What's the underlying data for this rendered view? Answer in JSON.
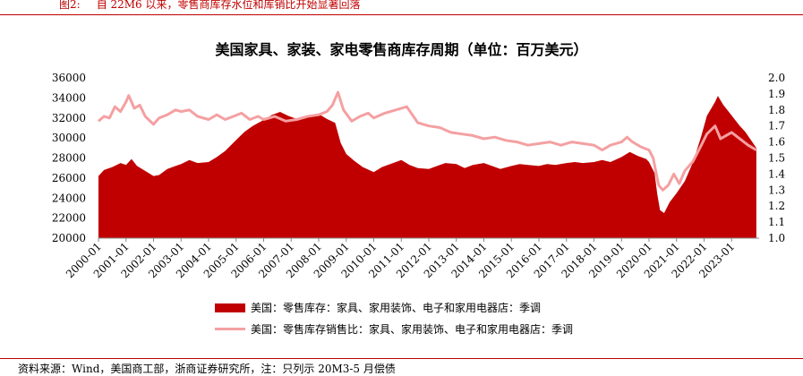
{
  "caption": {
    "label": "图2:",
    "text": "自 22M6 以来，零售商库存水位和库销比开始显著回落"
  },
  "source": "资料来源：Wind，美国商工部，浙商证券研究所，注：只列示 20M3-5 月偿债",
  "colors": {
    "inventory": "#c00000",
    "ratio": "#f4a0a2",
    "rule": "#c00000"
  },
  "chart_data": {
    "type": "area+line",
    "title": "美国家具、家装、家电零售商库存周期（单位：百万美元）",
    "x_labels": [
      "2000-01",
      "2001-01",
      "2002-01",
      "2003-01",
      "2004-01",
      "2005-01",
      "2006-01",
      "2007-01",
      "2008-01",
      "2009-01",
      "2010-01",
      "2011-01",
      "2012-01",
      "2013-01",
      "2014-01",
      "2015-01",
      "2016-01",
      "2017-01",
      "2018-01",
      "2019-01",
      "2020-01",
      "2021-01",
      "2022-01",
      "2023-01"
    ],
    "y_left": {
      "min": 20000,
      "max": 36000,
      "step": 2000
    },
    "y_right": {
      "min": 1.0,
      "max": 2.0,
      "step": 0.1
    },
    "legend_position": "bottom",
    "series": [
      {
        "name": "美国：零售库存：家具、家用装饰、电子和家用电器店：季调",
        "kind": "area",
        "axis": "left",
        "points": [
          [
            2000.0,
            26200
          ],
          [
            2000.2,
            26800
          ],
          [
            2000.5,
            27100
          ],
          [
            2000.8,
            27500
          ],
          [
            2001.0,
            27300
          ],
          [
            2001.2,
            27900
          ],
          [
            2001.4,
            27200
          ],
          [
            2001.7,
            26700
          ],
          [
            2002.0,
            26200
          ],
          [
            2002.2,
            26300
          ],
          [
            2002.5,
            26900
          ],
          [
            2002.8,
            27200
          ],
          [
            2003.0,
            27400
          ],
          [
            2003.3,
            27800
          ],
          [
            2003.6,
            27500
          ],
          [
            2004.0,
            27600
          ],
          [
            2004.3,
            28100
          ],
          [
            2004.6,
            28700
          ],
          [
            2005.0,
            29800
          ],
          [
            2005.3,
            30600
          ],
          [
            2005.6,
            31200
          ],
          [
            2006.0,
            31800
          ],
          [
            2006.3,
            32300
          ],
          [
            2006.6,
            32600
          ],
          [
            2006.9,
            32200
          ],
          [
            2007.2,
            31900
          ],
          [
            2007.5,
            32100
          ],
          [
            2007.8,
            32300
          ],
          [
            2008.0,
            32400
          ],
          [
            2008.3,
            31900
          ],
          [
            2008.6,
            31500
          ],
          [
            2008.8,
            29500
          ],
          [
            2009.0,
            28400
          ],
          [
            2009.3,
            27700
          ],
          [
            2009.6,
            27100
          ],
          [
            2010.0,
            26600
          ],
          [
            2010.3,
            27100
          ],
          [
            2010.6,
            27400
          ],
          [
            2011.0,
            27800
          ],
          [
            2011.3,
            27300
          ],
          [
            2011.6,
            27000
          ],
          [
            2012.0,
            26900
          ],
          [
            2012.3,
            27200
          ],
          [
            2012.6,
            27500
          ],
          [
            2013.0,
            27400
          ],
          [
            2013.3,
            27000
          ],
          [
            2013.6,
            27300
          ],
          [
            2014.0,
            27500
          ],
          [
            2014.3,
            27200
          ],
          [
            2014.6,
            26900
          ],
          [
            2015.0,
            27200
          ],
          [
            2015.3,
            27400
          ],
          [
            2015.6,
            27300
          ],
          [
            2016.0,
            27200
          ],
          [
            2016.3,
            27400
          ],
          [
            2016.6,
            27300
          ],
          [
            2017.0,
            27500
          ],
          [
            2017.3,
            27600
          ],
          [
            2017.6,
            27500
          ],
          [
            2018.0,
            27600
          ],
          [
            2018.3,
            27800
          ],
          [
            2018.6,
            27600
          ],
          [
            2019.0,
            28100
          ],
          [
            2019.3,
            28600
          ],
          [
            2019.6,
            28200
          ],
          [
            2019.9,
            27900
          ],
          [
            2020.0,
            27600
          ],
          [
            2020.2,
            26500
          ],
          [
            2020.3,
            24400
          ],
          [
            2020.4,
            22800
          ],
          [
            2020.55,
            22500
          ],
          [
            2020.75,
            23600
          ],
          [
            2021.0,
            24500
          ],
          [
            2021.3,
            25700
          ],
          [
            2021.6,
            27600
          ],
          [
            2021.9,
            30200
          ],
          [
            2022.1,
            32200
          ],
          [
            2022.4,
            33600
          ],
          [
            2022.5,
            34200
          ],
          [
            2022.7,
            33300
          ],
          [
            2022.9,
            32600
          ],
          [
            2023.1,
            31900
          ],
          [
            2023.3,
            31200
          ],
          [
            2023.5,
            30600
          ],
          [
            2023.7,
            29800
          ],
          [
            2023.9,
            29000
          ]
        ]
      },
      {
        "name": "美国：零售库存销售比：家具、家用装饰、电子和家用电器店：季调",
        "kind": "line",
        "axis": "right",
        "points": [
          [
            2000.0,
            1.73
          ],
          [
            2000.2,
            1.76
          ],
          [
            2000.4,
            1.75
          ],
          [
            2000.6,
            1.82
          ],
          [
            2000.8,
            1.79
          ],
          [
            2001.0,
            1.85
          ],
          [
            2001.1,
            1.89
          ],
          [
            2001.3,
            1.81
          ],
          [
            2001.5,
            1.83
          ],
          [
            2001.7,
            1.76
          ],
          [
            2002.0,
            1.71
          ],
          [
            2002.2,
            1.75
          ],
          [
            2002.5,
            1.77
          ],
          [
            2002.8,
            1.8
          ],
          [
            2003.0,
            1.79
          ],
          [
            2003.3,
            1.8
          ],
          [
            2003.6,
            1.76
          ],
          [
            2004.0,
            1.74
          ],
          [
            2004.3,
            1.77
          ],
          [
            2004.6,
            1.74
          ],
          [
            2004.9,
            1.76
          ],
          [
            2005.2,
            1.78
          ],
          [
            2005.5,
            1.74
          ],
          [
            2005.8,
            1.76
          ],
          [
            2006.0,
            1.74
          ],
          [
            2006.4,
            1.76
          ],
          [
            2006.8,
            1.73
          ],
          [
            2007.2,
            1.74
          ],
          [
            2007.6,
            1.76
          ],
          [
            2008.0,
            1.77
          ],
          [
            2008.3,
            1.79
          ],
          [
            2008.5,
            1.83
          ],
          [
            2008.7,
            1.91
          ],
          [
            2008.9,
            1.8
          ],
          [
            2009.2,
            1.73
          ],
          [
            2009.5,
            1.76
          ],
          [
            2009.8,
            1.78
          ],
          [
            2010.0,
            1.75
          ],
          [
            2010.4,
            1.78
          ],
          [
            2010.8,
            1.8
          ],
          [
            2011.2,
            1.82
          ],
          [
            2011.6,
            1.72
          ],
          [
            2012.0,
            1.7
          ],
          [
            2012.4,
            1.69
          ],
          [
            2012.8,
            1.66
          ],
          [
            2013.2,
            1.65
          ],
          [
            2013.6,
            1.64
          ],
          [
            2014.0,
            1.62
          ],
          [
            2014.4,
            1.63
          ],
          [
            2014.8,
            1.61
          ],
          [
            2015.2,
            1.6
          ],
          [
            2015.6,
            1.58
          ],
          [
            2016.0,
            1.59
          ],
          [
            2016.4,
            1.6
          ],
          [
            2016.8,
            1.58
          ],
          [
            2017.2,
            1.6
          ],
          [
            2017.6,
            1.59
          ],
          [
            2018.0,
            1.58
          ],
          [
            2018.3,
            1.55
          ],
          [
            2018.6,
            1.58
          ],
          [
            2019.0,
            1.6
          ],
          [
            2019.2,
            1.63
          ],
          [
            2019.4,
            1.6
          ],
          [
            2019.7,
            1.57
          ],
          [
            2020.0,
            1.55
          ],
          [
            2020.15,
            1.5
          ],
          [
            2020.35,
            1.33
          ],
          [
            2020.5,
            1.3
          ],
          [
            2020.7,
            1.33
          ],
          [
            2020.9,
            1.4
          ],
          [
            2021.1,
            1.34
          ],
          [
            2021.3,
            1.42
          ],
          [
            2021.6,
            1.48
          ],
          [
            2021.9,
            1.58
          ],
          [
            2022.1,
            1.65
          ],
          [
            2022.4,
            1.7
          ],
          [
            2022.6,
            1.62
          ],
          [
            2022.8,
            1.64
          ],
          [
            2023.0,
            1.66
          ],
          [
            2023.3,
            1.62
          ],
          [
            2023.6,
            1.58
          ],
          [
            2023.9,
            1.55
          ]
        ]
      }
    ]
  }
}
